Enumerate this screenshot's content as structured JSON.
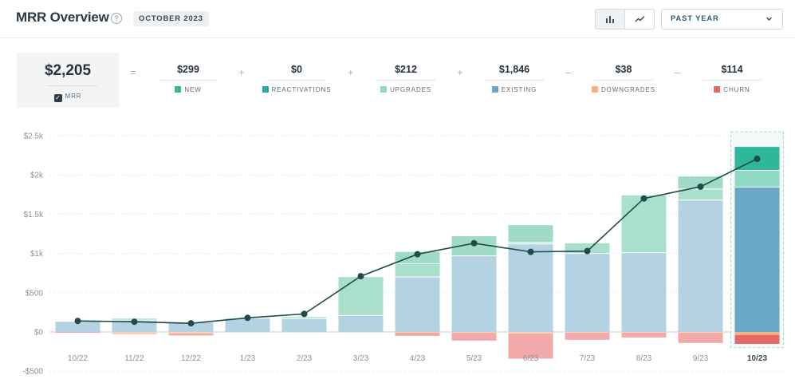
{
  "header": {
    "title": "MRR Overview",
    "help_icon": "question-circle-icon",
    "period": "OCTOBER 2023",
    "view_buttons": [
      {
        "icon": "bar-chart-icon",
        "active": true
      },
      {
        "icon": "line-chart-icon",
        "active": false
      }
    ],
    "range": "PAST YEAR"
  },
  "summary": {
    "total": {
      "value": "$2,205",
      "label": "MRR"
    },
    "operators": [
      "=",
      "+",
      "+",
      "+",
      "–",
      "–"
    ],
    "components": [
      {
        "value": "$299",
        "label": "NEW",
        "color": "#2fb79b"
      },
      {
        "value": "$0",
        "label": "REACTIVATIONS",
        "color": "#27ab9c"
      },
      {
        "value": "$212",
        "label": "UPGRADES",
        "color": "#8ed9c2"
      },
      {
        "value": "$1,846",
        "label": "EXISTING",
        "color": "#6aa7c8"
      },
      {
        "value": "$38",
        "label": "DOWNGRADES",
        "color": "#f5b083"
      },
      {
        "value": "$114",
        "label": "CHURN",
        "color": "#e66a6a"
      }
    ]
  },
  "chart_data": {
    "type": "bar",
    "stacked": true,
    "categories": [
      "10/22",
      "11/22",
      "12/22",
      "1/23",
      "2/23",
      "3/23",
      "4/23",
      "5/23",
      "6/23",
      "7/23",
      "8/23",
      "9/23",
      "10/23"
    ],
    "highlighted_category": "10/23",
    "y_ticks": [
      "$2.5k",
      "$2k",
      "$1.5k",
      "$1k",
      "$500",
      "$0",
      "-$500"
    ],
    "ylim": [
      -500,
      2500
    ],
    "grid": true,
    "series": [
      {
        "name": "EXISTING",
        "color": "#b3d3e3",
        "highlight_color": "#6aa7c8",
        "values": [
          130,
          150,
          120,
          170,
          170,
          210,
          700,
          970,
          1120,
          1000,
          1010,
          1680,
          1846
        ]
      },
      {
        "name": "UPGRADES",
        "color": "#a8e0cc",
        "highlight_color": "#8ed9c2",
        "values": [
          0,
          20,
          0,
          0,
          20,
          490,
          170,
          0,
          20,
          130,
          730,
          140,
          212
        ]
      },
      {
        "name": "REACTIVATIONS",
        "color": "#9fdbc6",
        "highlight_color": "#27ab9c",
        "values": [
          0,
          0,
          0,
          0,
          0,
          0,
          0,
          0,
          0,
          0,
          0,
          0,
          0
        ]
      },
      {
        "name": "NEW",
        "color": "#9fdbc6",
        "highlight_color": "#2fb79b",
        "values": [
          0,
          0,
          0,
          0,
          0,
          0,
          150,
          250,
          220,
          0,
          0,
          160,
          299
        ]
      },
      {
        "name": "DOWNGRADES",
        "color": "#f9d2b6",
        "highlight_color": "#f5b083",
        "values": [
          0,
          -30,
          -20,
          0,
          0,
          0,
          -10,
          -10,
          -20,
          -10,
          -10,
          -10,
          -38
        ]
      },
      {
        "name": "CHURN",
        "color": "#f2a9a9",
        "highlight_color": "#e66a6a",
        "values": [
          -10,
          0,
          -25,
          0,
          0,
          0,
          -40,
          -100,
          -320,
          -90,
          -60,
          -130,
          -114
        ]
      }
    ],
    "line": {
      "name": "MRR",
      "color": "#1f4b4a",
      "values": [
        140,
        130,
        110,
        180,
        230,
        710,
        990,
        1130,
        1020,
        1030,
        1700,
        1850,
        2205
      ]
    }
  }
}
